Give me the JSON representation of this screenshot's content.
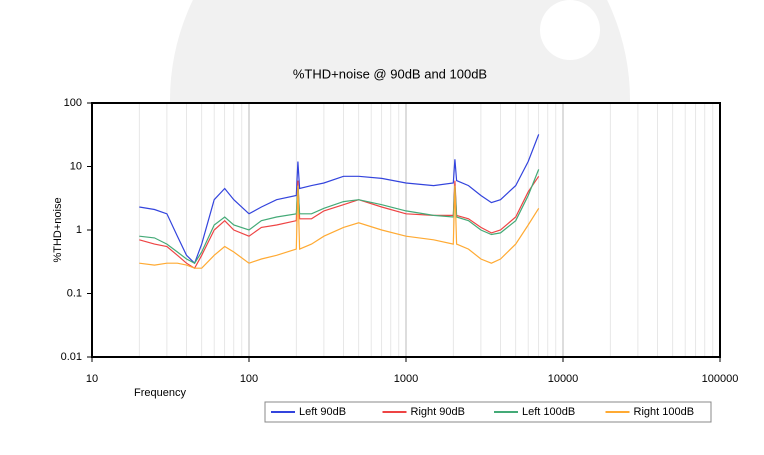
{
  "chart_data": {
    "type": "line",
    "title": "%THD+noise @ 90dB and 100dB",
    "x_label": "Frequency",
    "y_label": "%THD+noise",
    "log_x": true,
    "log_y": true,
    "grid": true,
    "minor_grid": true,
    "legend": "bottom",
    "xlim": [
      10,
      100000
    ],
    "xticks": [
      10,
      100,
      1000,
      10000,
      100000
    ],
    "ylim": [
      0.01,
      100
    ],
    "yticks": [
      0.01,
      0.1,
      1,
      10,
      100
    ],
    "x": [
      20,
      25,
      30,
      35,
      40,
      45,
      50,
      60,
      70,
      80,
      100,
      120,
      150,
      200,
      205,
      210,
      250,
      300,
      400,
      500,
      700,
      1000,
      1500,
      2000,
      2050,
      2100,
      2500,
      3000,
      3500,
      4000,
      5000,
      6000,
      7000
    ],
    "series": [
      {
        "name": "Left 90dB",
        "color": "#3344dd",
        "values": [
          2.3,
          2.1,
          1.8,
          0.8,
          0.4,
          0.3,
          0.6,
          3,
          4.5,
          3,
          1.8,
          2.3,
          3,
          3.5,
          12,
          4.5,
          5,
          5.5,
          7,
          7,
          6.5,
          5.5,
          5,
          5.5,
          13,
          6,
          5,
          3.5,
          2.7,
          3,
          5,
          12,
          32
        ]
      },
      {
        "name": "Right 90dB",
        "color": "#ee4444",
        "values": [
          0.7,
          0.6,
          0.55,
          0.4,
          0.3,
          0.25,
          0.4,
          1,
          1.4,
          1,
          0.8,
          1.1,
          1.2,
          1.4,
          6,
          1.5,
          1.5,
          2,
          2.5,
          3,
          2.3,
          1.8,
          1.7,
          1.7,
          6,
          1.7,
          1.5,
          1.1,
          0.9,
          1,
          1.6,
          4,
          7
        ]
      },
      {
        "name": "Left 100dB",
        "color": "#44aa77",
        "values": [
          0.8,
          0.75,
          0.6,
          0.45,
          0.35,
          0.3,
          0.45,
          1.2,
          1.6,
          1.2,
          1,
          1.4,
          1.6,
          1.8,
          5,
          1.8,
          1.8,
          2.2,
          2.8,
          3,
          2.5,
          2,
          1.7,
          1.6,
          5,
          1.6,
          1.4,
          1,
          0.85,
          0.9,
          1.4,
          3.5,
          9
        ]
      },
      {
        "name": "Right 100dB",
        "color": "#ffaa33",
        "values": [
          0.3,
          0.28,
          0.3,
          0.3,
          0.28,
          0.25,
          0.25,
          0.4,
          0.55,
          0.45,
          0.3,
          0.35,
          0.4,
          0.5,
          5,
          0.5,
          0.6,
          0.8,
          1.1,
          1.3,
          1,
          0.8,
          0.7,
          0.6,
          5,
          0.6,
          0.5,
          0.35,
          0.3,
          0.35,
          0.6,
          1.2,
          2.2
        ]
      }
    ]
  }
}
